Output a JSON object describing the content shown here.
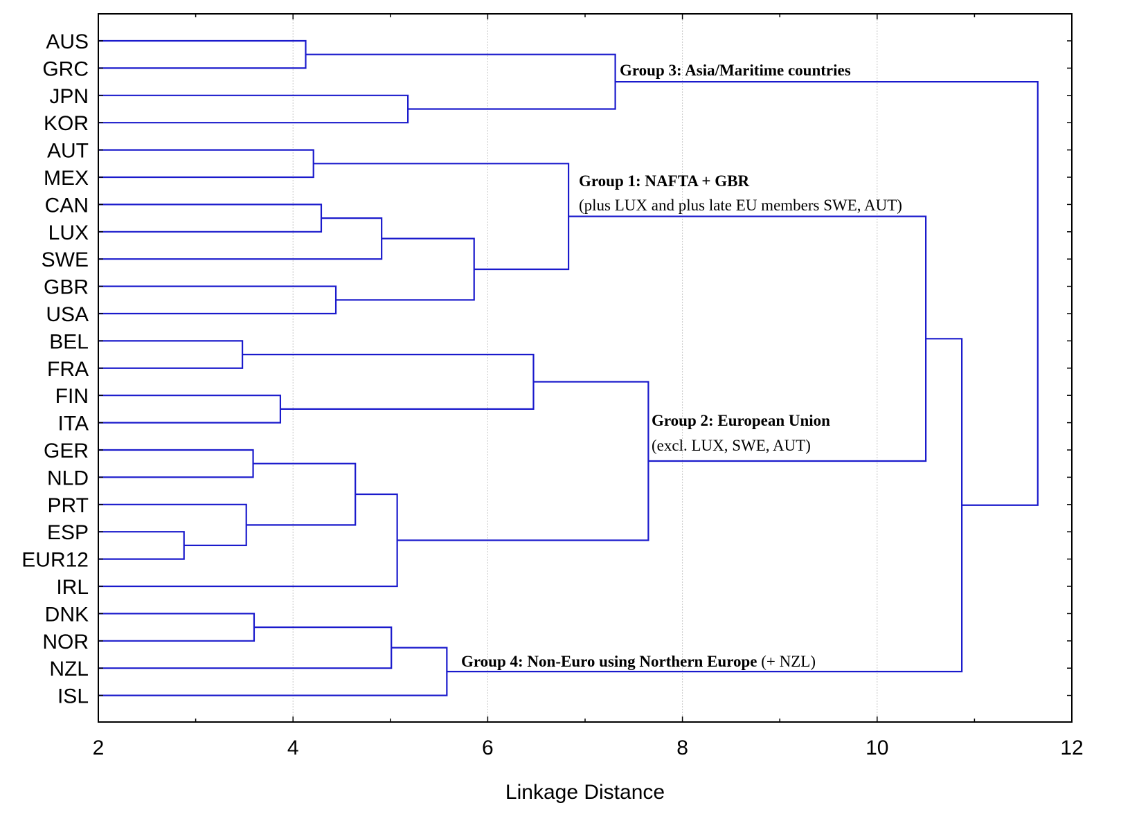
{
  "chart_data": {
    "type": "dendrogram",
    "orientation": "horizontal",
    "xlabel": "Linkage Distance",
    "xlim": [
      2,
      12
    ],
    "x_ticks": [
      2,
      4,
      6,
      8,
      10,
      12
    ],
    "grid": true,
    "line_color": "#1a1acc",
    "leaves": [
      "AUS",
      "GRC",
      "JPN",
      "KOR",
      "AUT",
      "MEX",
      "CAN",
      "LUX",
      "SWE",
      "GBR",
      "USA",
      "BEL",
      "FRA",
      "FIN",
      "ITA",
      "GER",
      "NLD",
      "PRT",
      "ESP",
      "EUR12",
      "IRL",
      "DNK",
      "NOR",
      "NZL",
      "ISL"
    ],
    "merges": [
      {
        "id": "m1",
        "children": [
          "ESP",
          "EUR12"
        ],
        "distance": 2.88
      },
      {
        "id": "m2",
        "children": [
          "BEL",
          "FRA"
        ],
        "distance": 3.48
      },
      {
        "id": "m3",
        "children": [
          "PRT",
          "m1"
        ],
        "distance": 3.52
      },
      {
        "id": "m4",
        "children": [
          "GER",
          "NLD"
        ],
        "distance": 3.59
      },
      {
        "id": "m5",
        "children": [
          "DNK",
          "NOR"
        ],
        "distance": 3.6
      },
      {
        "id": "m6",
        "children": [
          "FIN",
          "ITA"
        ],
        "distance": 3.87
      },
      {
        "id": "m7",
        "children": [
          "AUS",
          "GRC"
        ],
        "distance": 4.13
      },
      {
        "id": "m8",
        "children": [
          "AUT",
          "MEX"
        ],
        "distance": 4.21
      },
      {
        "id": "m9",
        "children": [
          "CAN",
          "LUX"
        ],
        "distance": 4.29
      },
      {
        "id": "m10",
        "children": [
          "GBR",
          "USA"
        ],
        "distance": 4.44
      },
      {
        "id": "m11",
        "children": [
          "m4",
          "m3"
        ],
        "distance": 4.64
      },
      {
        "id": "m12",
        "children": [
          "m9",
          "SWE"
        ],
        "distance": 4.91
      },
      {
        "id": "m13",
        "children": [
          "m5",
          "NZL"
        ],
        "distance": 5.01
      },
      {
        "id": "m14",
        "children": [
          "m11",
          "IRL"
        ],
        "distance": 5.07
      },
      {
        "id": "m15",
        "children": [
          "JPN",
          "KOR"
        ],
        "distance": 5.18
      },
      {
        "id": "m16",
        "children": [
          "m13",
          "ISL"
        ],
        "distance": 5.58
      },
      {
        "id": "m17",
        "children": [
          "m12",
          "m10"
        ],
        "distance": 5.86
      },
      {
        "id": "m18",
        "children": [
          "m2",
          "m6"
        ],
        "distance": 6.47
      },
      {
        "id": "m19",
        "children": [
          "m8",
          "m17"
        ],
        "distance": 6.83
      },
      {
        "id": "m20",
        "children": [
          "m7",
          "m15"
        ],
        "distance": 7.31
      },
      {
        "id": "m21",
        "children": [
          "m18",
          "m14"
        ],
        "distance": 7.65
      },
      {
        "id": "m22",
        "children": [
          "m19",
          "m21"
        ],
        "distance": 10.5
      },
      {
        "id": "m23",
        "children": [
          "m22",
          "m16"
        ],
        "distance": 10.87
      },
      {
        "id": "m24",
        "children": [
          "m20",
          "m23"
        ],
        "distance": 11.65
      }
    ],
    "annotations": [
      {
        "id": "group3",
        "segments": [
          {
            "text": "Group 3: Asia/Maritime countries",
            "bold": true
          }
        ],
        "anchor_merge": "m20"
      },
      {
        "id": "group1",
        "segments": [
          {
            "text": "Group 1: NAFTA + GBR",
            "bold": true
          }
        ],
        "anchor_merge": "m19"
      },
      {
        "id": "group1-sub",
        "segments": [
          {
            "text": "(plus LUX and plus late EU members SWE, AUT)",
            "bold": false
          }
        ],
        "anchor_merge": "m19"
      },
      {
        "id": "group2",
        "segments": [
          {
            "text": "Group 2: European Union",
            "bold": true
          }
        ],
        "anchor_merge": "m21"
      },
      {
        "id": "group2-sub",
        "segments": [
          {
            "text": "(excl. LUX, SWE, AUT)",
            "bold": false
          }
        ],
        "anchor_merge": "m21"
      },
      {
        "id": "group4",
        "segments": [
          {
            "text": "Group 4: Non-Euro using Northern Europe",
            "bold": true
          },
          {
            "text": " (+ NZL)",
            "bold": false
          }
        ],
        "anchor_merge": "m16"
      }
    ]
  }
}
